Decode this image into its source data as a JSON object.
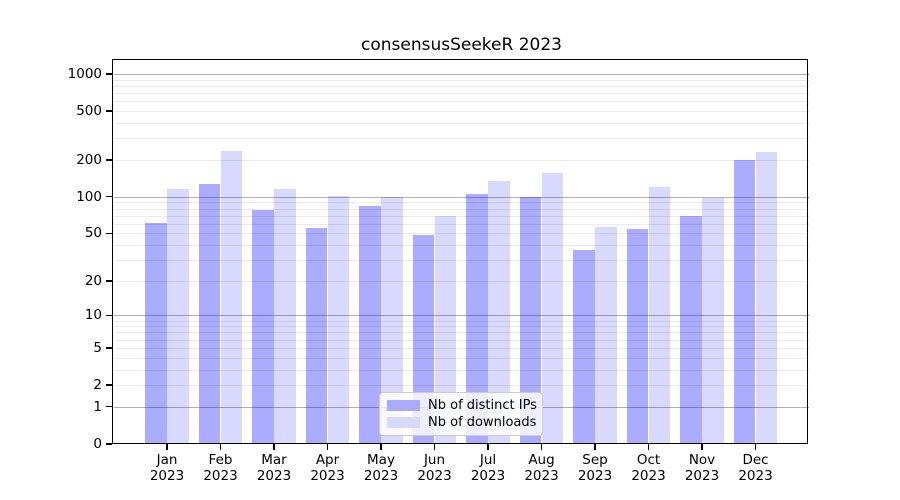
{
  "chart_data": {
    "type": "bar",
    "title": "consensusSeekeR 2023",
    "y_scale": "log10(value+1)",
    "ylim": [
      0,
      1200
    ],
    "grid": "major gridlines at 1,10,100,1000; light minor gridlines at 2-9 per decade",
    "legend_position": "bottom-center inside plot",
    "y_ticks": [
      0,
      1,
      2,
      5,
      10,
      20,
      50,
      100,
      200,
      500,
      1000
    ],
    "months": [
      {
        "month": "Jan",
        "year": "2023"
      },
      {
        "month": "Feb",
        "year": "2023"
      },
      {
        "month": "Mar",
        "year": "2023"
      },
      {
        "month": "Apr",
        "year": "2023"
      },
      {
        "month": "May",
        "year": "2023"
      },
      {
        "month": "Jun",
        "year": "2023"
      },
      {
        "month": "Jul",
        "year": "2023"
      },
      {
        "month": "Aug",
        "year": "2023"
      },
      {
        "month": "Sep",
        "year": "2023"
      },
      {
        "month": "Oct",
        "year": "2023"
      },
      {
        "month": "Nov",
        "year": "2023"
      },
      {
        "month": "Dec",
        "year": "2023"
      }
    ],
    "series": [
      {
        "name": "Nb of distinct IPs",
        "fill": "rgba(0,0,255,0.33)",
        "legend_color": "#aaaaff",
        "values": [
          61,
          126,
          78,
          55,
          84,
          48,
          105,
          100,
          36,
          54,
          70,
          198
        ]
      },
      {
        "name": "Nb of downloads",
        "fill": "rgba(0,0,255,0.15)",
        "legend_color": "#d9d9ff",
        "values": [
          116,
          236,
          115,
          101,
          100,
          69,
          134,
          155,
          56,
          119,
          97,
          230
        ]
      }
    ],
    "colors": {
      "axis": "#000000",
      "major_grid": "#b0b0b0",
      "minor_grid": "#ebebeb",
      "text": "#000000"
    }
  }
}
